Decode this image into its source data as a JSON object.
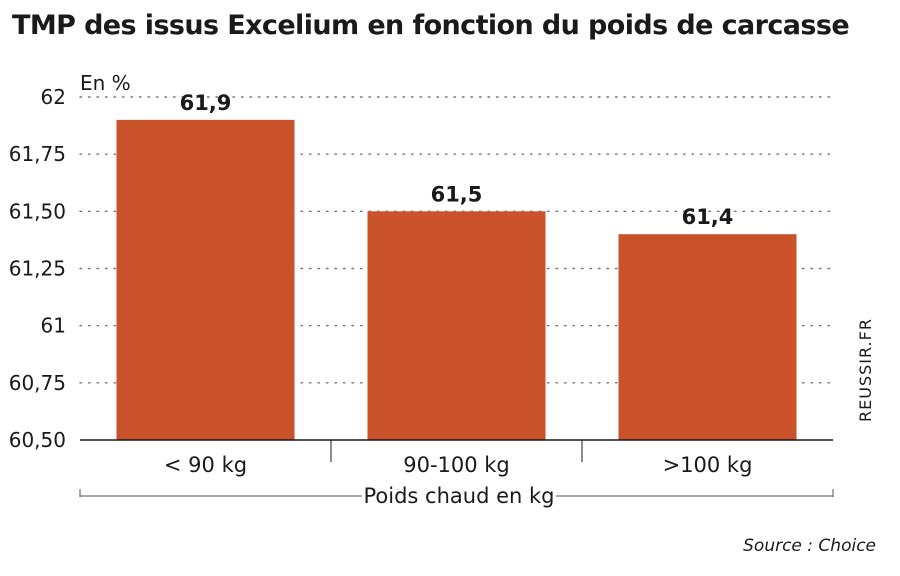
{
  "title": "TMP des issus Excelium en fonction du poids de carcasse",
  "watermark": "REUSSIR.FR",
  "source": "Source : Choice",
  "chart_data": {
    "type": "bar",
    "title": "TMP des issus Excelium en fonction du poids de carcasse",
    "unit_label": "En %",
    "xlabel": "Poids chaud en kg",
    "categories": [
      "< 90 kg",
      "90-100 kg",
      ">100 kg"
    ],
    "values": [
      61.9,
      61.5,
      61.4
    ],
    "value_labels": [
      "61,9",
      "61,5",
      "61,4"
    ],
    "ylim": [
      60.5,
      62
    ],
    "yticks": [
      60.5,
      60.75,
      61,
      61.25,
      61.5,
      61.75,
      62
    ],
    "ytick_labels": [
      "60,50",
      "60,75",
      "61",
      "61,25",
      "61,50",
      "61,75",
      "62"
    ],
    "grid": "dotted horizontal",
    "bar_color": "#c9522b"
  }
}
